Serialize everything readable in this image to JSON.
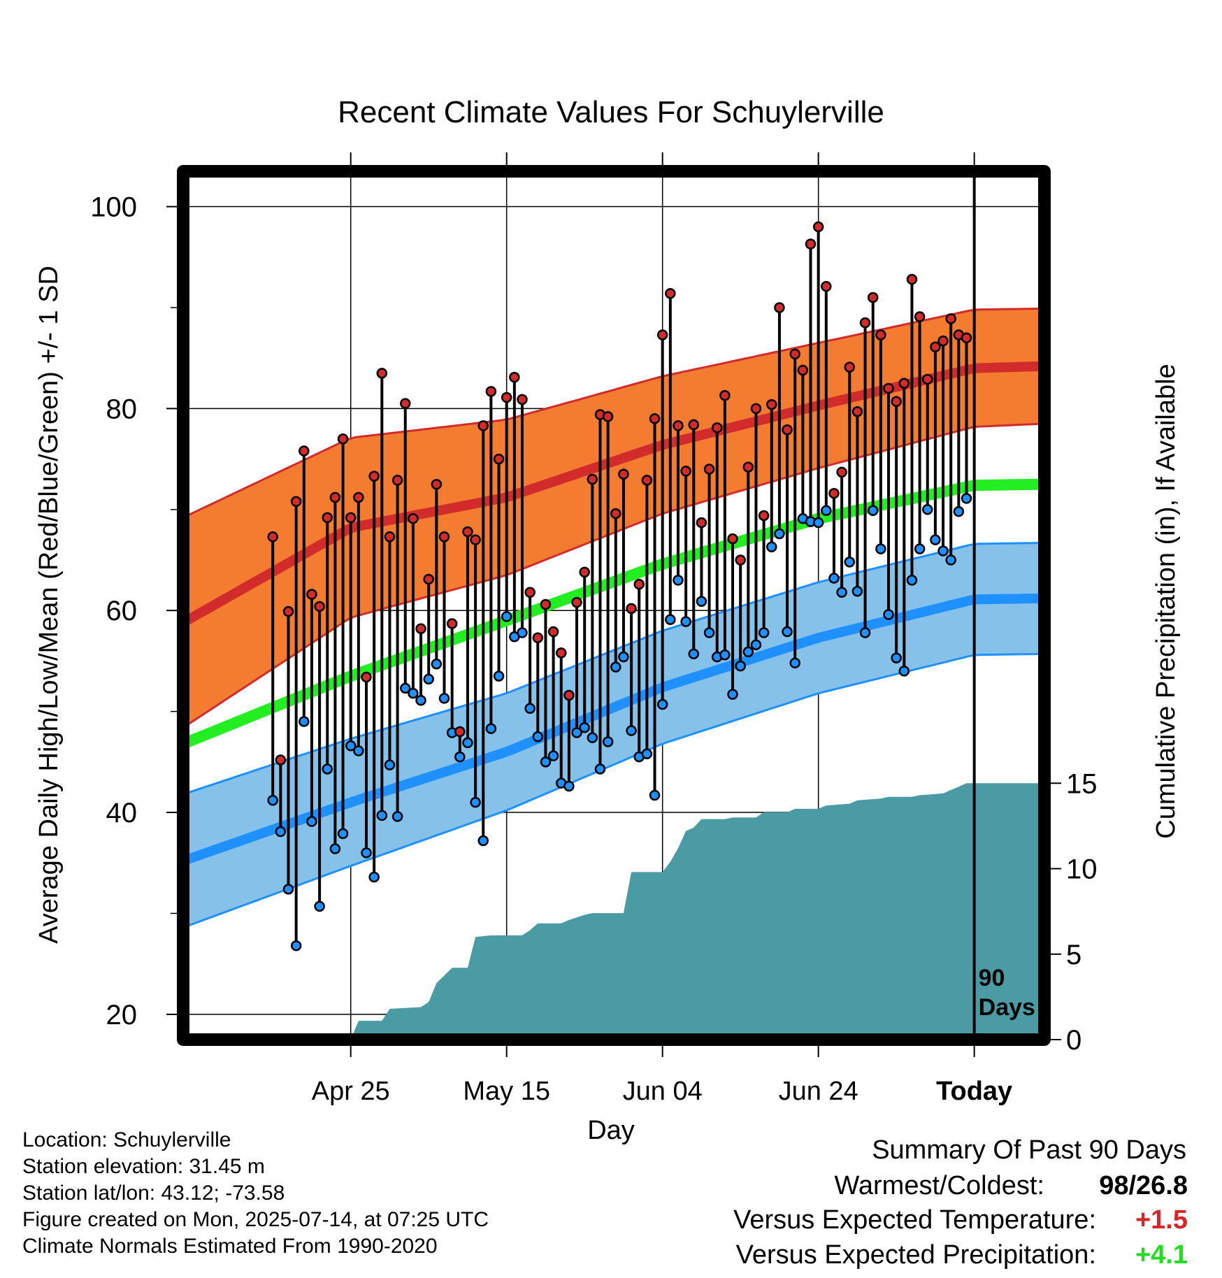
{
  "chart_data": {
    "type": "line",
    "title": "Recent Climate Values For Schuylerville",
    "xlabel": "Day",
    "ylabel": "Average Daily High/Low/Mean (Red/Blue/Green) +/- 1 SD",
    "y2label": "Cumulative Precipitation (in), If Available",
    "ylim": [
      17.5,
      103.5
    ],
    "yticks": [
      20,
      40,
      60,
      80,
      100
    ],
    "y2lim": [
      0,
      50.8
    ],
    "y2ticks": [
      0,
      5,
      10,
      15
    ],
    "xlim": [
      -101.5,
      9
    ],
    "xticks": [
      {
        "day": -80,
        "label": "Apr 25"
      },
      {
        "day": -60,
        "label": "May 15"
      },
      {
        "day": -40,
        "label": "Jun 04"
      },
      {
        "day": -20,
        "label": "Jun 24"
      },
      {
        "day": 0,
        "label": "Today"
      }
    ],
    "today_marker": {
      "day": 0,
      "label_line1": "90",
      "label_line2": "Days"
    },
    "grid": true,
    "highs": [
      67.3,
      45.2,
      59.9,
      70.8,
      75.8,
      61.6,
      60.4,
      69.2,
      71.2,
      77.0,
      69.2,
      71.2,
      53.4,
      73.3,
      83.5,
      67.3,
      72.9,
      80.5,
      69.1,
      58.2,
      63.1,
      72.5,
      67.3,
      58.7,
      48.0,
      67.8,
      67.0,
      78.3,
      81.7,
      75.0,
      81.1,
      83.1,
      80.9,
      61.8,
      57.3,
      60.6,
      57.9,
      55.8,
      51.6,
      60.8,
      63.8,
      73.0,
      79.4,
      79.2,
      69.6,
      73.5,
      60.2,
      62.6,
      72.9,
      79.0,
      87.3,
      91.4,
      78.3,
      73.8,
      78.4,
      68.7,
      74.0,
      78.1,
      81.3,
      67.1,
      65.0,
      74.2,
      80.0,
      69.4,
      80.4,
      90.0,
      77.9,
      85.4,
      83.8,
      96.3,
      98.0,
      92.1,
      71.6,
      73.7,
      84.1,
      79.7,
      88.5,
      91.0,
      87.3,
      82.0,
      80.7,
      82.5,
      92.8,
      89.1,
      82.9,
      86.1,
      86.7,
      88.9,
      87.3,
      87.0
    ],
    "lows": [
      41.2,
      38.1,
      32.4,
      26.8,
      49.0,
      39.1,
      30.7,
      44.3,
      36.4,
      37.9,
      46.6,
      46.1,
      36.0,
      33.6,
      39.7,
      44.7,
      39.6,
      52.3,
      51.8,
      51.1,
      53.2,
      54.7,
      51.3,
      47.9,
      45.5,
      46.9,
      41.0,
      37.2,
      48.3,
      53.5,
      59.4,
      57.4,
      57.8,
      50.3,
      47.5,
      45.0,
      45.6,
      42.9,
      42.6,
      47.9,
      48.4,
      47.4,
      44.3,
      47.0,
      54.4,
      55.4,
      48.1,
      45.5,
      45.8,
      41.7,
      50.7,
      59.1,
      63.0,
      58.9,
      55.7,
      60.9,
      57.8,
      55.4,
      55.6,
      51.7,
      54.5,
      55.9,
      56.6,
      57.8,
      66.3,
      67.6,
      57.9,
      54.8,
      69.1,
      68.8,
      68.7,
      69.9,
      63.2,
      61.8,
      64.8,
      61.9,
      57.8,
      69.9,
      66.1,
      59.6,
      55.3,
      54.0,
      63.0,
      66.1,
      70.0,
      67.0,
      65.9,
      65.0,
      69.8,
      71.1
    ],
    "normal_high": [
      {
        "day": -101.5,
        "mean": 58.8,
        "sd": 10.4
      },
      {
        "day": -80,
        "mean": 68.2,
        "sd": 8.9
      },
      {
        "day": -60,
        "mean": 71.2,
        "sd": 7.7
      },
      {
        "day": -40,
        "mean": 76.4,
        "sd": 6.8
      },
      {
        "day": -20,
        "mean": 80.3,
        "sd": 6.2
      },
      {
        "day": 0,
        "mean": 84.0,
        "sd": 5.8
      },
      {
        "day": 9,
        "mean": 84.2,
        "sd": 5.7
      }
    ],
    "normal_low": [
      {
        "day": -101.5,
        "mean": 35.2,
        "sd": 6.6
      },
      {
        "day": -80,
        "mean": 41.0,
        "sd": 6.3
      },
      {
        "day": -60,
        "mean": 46.0,
        "sd": 5.8
      },
      {
        "day": -40,
        "mean": 52.4,
        "sd": 5.6
      },
      {
        "day": -20,
        "mean": 57.3,
        "sd": 5.5
      },
      {
        "day": 0,
        "mean": 61.1,
        "sd": 5.5
      },
      {
        "day": 9,
        "mean": 61.2,
        "sd": 5.5
      }
    ],
    "normal_mean": [
      {
        "day": -101.5,
        "mean": 46.8
      },
      {
        "day": -80,
        "mean": 53.5
      },
      {
        "day": -60,
        "mean": 59.0
      },
      {
        "day": -40,
        "mean": 64.6
      },
      {
        "day": -20,
        "mean": 69.1
      },
      {
        "day": 0,
        "mean": 72.4
      },
      {
        "day": 9,
        "mean": 72.5
      }
    ],
    "precipitation": [
      {
        "day": -80,
        "value": 0.0
      },
      {
        "day": -79,
        "value": 1.1
      },
      {
        "day": -76,
        "value": 1.1
      },
      {
        "day": -75,
        "value": 1.8
      },
      {
        "day": -71,
        "value": 1.9
      },
      {
        "day": -70,
        "value": 2.2
      },
      {
        "day": -69,
        "value": 3.3
      },
      {
        "day": -67,
        "value": 4.2
      },
      {
        "day": -65,
        "value": 4.2
      },
      {
        "day": -64,
        "value": 6.0
      },
      {
        "day": -62,
        "value": 6.1
      },
      {
        "day": -58,
        "value": 6.1
      },
      {
        "day": -57,
        "value": 6.4
      },
      {
        "day": -56,
        "value": 6.8
      },
      {
        "day": -53,
        "value": 6.8
      },
      {
        "day": -52,
        "value": 7.0
      },
      {
        "day": -50,
        "value": 7.3
      },
      {
        "day": -49,
        "value": 7.4
      },
      {
        "day": -45,
        "value": 7.4
      },
      {
        "day": -44,
        "value": 9.8
      },
      {
        "day": -40,
        "value": 9.8
      },
      {
        "day": -39,
        "value": 10.4
      },
      {
        "day": -38,
        "value": 11.2
      },
      {
        "day": -37,
        "value": 12.2
      },
      {
        "day": -36,
        "value": 12.4
      },
      {
        "day": -35,
        "value": 12.9
      },
      {
        "day": -32,
        "value": 12.9
      },
      {
        "day": -31,
        "value": 13.0
      },
      {
        "day": -28,
        "value": 13.0
      },
      {
        "day": -27,
        "value": 13.3
      },
      {
        "day": -24,
        "value": 13.3
      },
      {
        "day": -23,
        "value": 13.5
      },
      {
        "day": -20,
        "value": 13.5
      },
      {
        "day": -19,
        "value": 13.7
      },
      {
        "day": -16,
        "value": 13.8
      },
      {
        "day": -15,
        "value": 14.0
      },
      {
        "day": -12,
        "value": 14.1
      },
      {
        "day": -11,
        "value": 14.2
      },
      {
        "day": -8,
        "value": 14.2
      },
      {
        "day": -7,
        "value": 14.3
      },
      {
        "day": -4,
        "value": 14.4
      },
      {
        "day": -3,
        "value": 14.6
      },
      {
        "day": -2,
        "value": 14.8
      },
      {
        "day": -1,
        "value": 15.0
      },
      {
        "day": 9,
        "value": 15.0
      }
    ],
    "colors": {
      "high_band": "#f47c30",
      "high_line": "#d22b2b",
      "low_band": "#85c1e9",
      "low_line": "#1e90ff",
      "mean_line": "#22ee22",
      "precip": "#4b9ba5",
      "high_marker": "#d22b2b",
      "low_marker": "#1e90ff"
    }
  },
  "station_info": {
    "location": "Location: Schuylerville",
    "elevation": "Station elevation: 31.45 m",
    "latlon": "Station lat/lon: 43.12; -73.58",
    "created": "Figure created on Mon, 2025-07-14, at 07:25 UTC",
    "normals": "Climate Normals Estimated From 1990-2020"
  },
  "summary": {
    "title": "Summary Of Past 90 Days",
    "warm_cold_label": "Warmest/Coldest:",
    "warm_cold_value": "98/26.8",
    "temp_label": "Versus Expected Temperature:",
    "temp_value": "+1.5",
    "temp_color": "#d62728",
    "precip_label": "Versus Expected Precipitation:",
    "precip_value": "+4.1",
    "precip_color": "#22dd22"
  }
}
